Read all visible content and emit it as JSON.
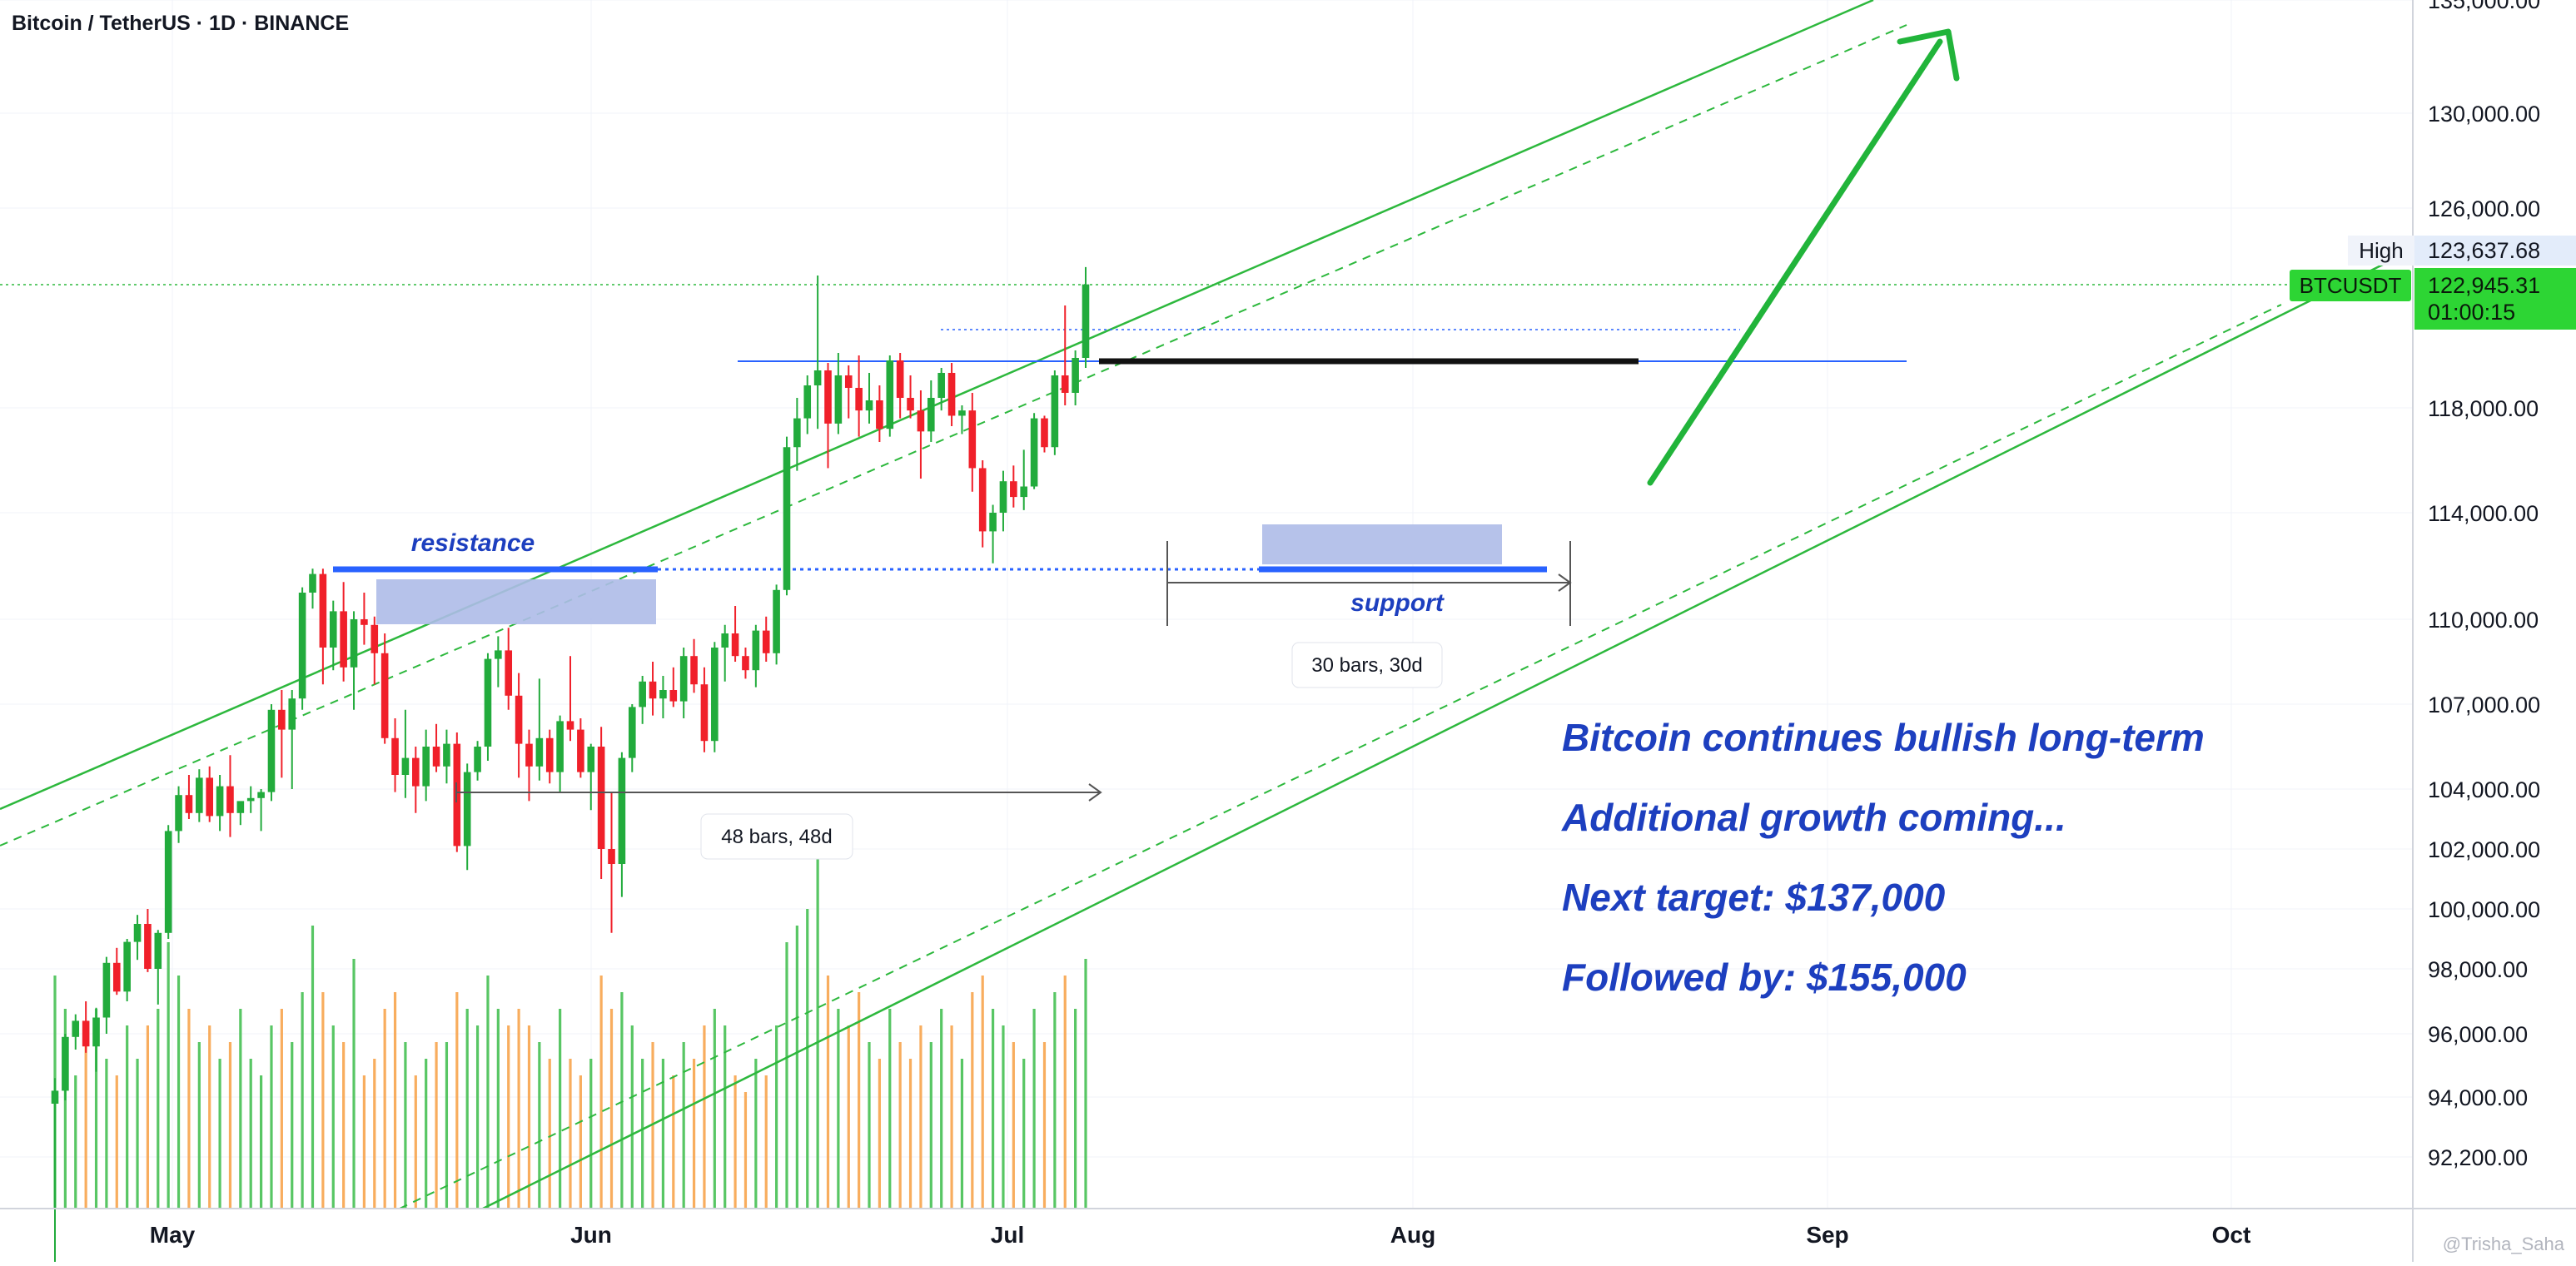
{
  "header": {
    "title": "Bitcoin / TetherUS · 1D · BINANCE"
  },
  "watermark": "@Trisha_Saha",
  "colors": {
    "up": "#22ab3c",
    "down": "#f0202a",
    "vol_up": "#46c053",
    "vol_down": "#f7a44d",
    "channel": "#2db83d",
    "blue_line": "#2962ff",
    "zone": "#aebbe8",
    "annotation_text": "#1d3fbf",
    "arrow": "#21b43a",
    "grid": "#f0f3fa"
  },
  "chart_data": {
    "type": "candlestick",
    "symbol": "BTCUSDT",
    "price_axis": {
      "ticks": [
        "135,000.00",
        "130,000.00",
        "126,000.00",
        "118,000.00",
        "114,000.00",
        "110,000.00",
        "107,000.00",
        "104,000.00",
        "102,000.00",
        "100,000.00",
        "98,000.00",
        "96,000.00",
        "94,000.00",
        "92,200.00"
      ],
      "tick_values": [
        135000,
        130000,
        126000,
        118000,
        114000,
        110000,
        107000,
        104000,
        102000,
        100000,
        98000,
        96000,
        94000,
        92200
      ]
    },
    "time_axis": {
      "labels": [
        "May",
        "Jun",
        "Jul",
        "Aug",
        "Sep",
        "Oct"
      ]
    },
    "price_labels": {
      "high_label": "High",
      "high_value": "123,637.68",
      "symbol": "BTCUSDT",
      "last_value": "122,945.31",
      "countdown": "01:00:15"
    },
    "candles": [
      [
        93800,
        94600,
        89000,
        94200,
        14
      ],
      [
        94200,
        96000,
        93900,
        95900,
        12
      ],
      [
        95900,
        96600,
        95500,
        96400,
        8
      ],
      [
        96400,
        97000,
        95400,
        95600,
        10
      ],
      [
        95600,
        96800,
        94800,
        96500,
        12
      ],
      [
        96500,
        98400,
        96000,
        98200,
        9
      ],
      [
        98200,
        98700,
        97200,
        97300,
        8
      ],
      [
        97300,
        99000,
        97000,
        98900,
        11
      ],
      [
        98900,
        99800,
        98300,
        99500,
        9
      ],
      [
        99500,
        100000,
        97900,
        98000,
        11
      ],
      [
        98000,
        99300,
        96900,
        99200,
        12
      ],
      [
        99200,
        102800,
        99000,
        102600,
        16
      ],
      [
        102600,
        104100,
        102200,
        103800,
        14
      ],
      [
        103800,
        104500,
        103000,
        103200,
        12
      ],
      [
        103200,
        104700,
        102900,
        104400,
        10
      ],
      [
        104400,
        104800,
        102900,
        103100,
        11
      ],
      [
        103100,
        104500,
        102600,
        104100,
        9
      ],
      [
        104100,
        105200,
        102400,
        103200,
        10
      ],
      [
        103200,
        103500,
        102800,
        103600,
        12
      ],
      [
        103600,
        104100,
        103200,
        103700,
        9
      ],
      [
        103700,
        104000,
        102600,
        103900,
        8
      ],
      [
        103900,
        107000,
        103600,
        106800,
        11
      ],
      [
        106800,
        107500,
        104400,
        106100,
        12
      ],
      [
        106100,
        107500,
        104000,
        107200,
        10
      ],
      [
        107200,
        111200,
        106800,
        111000,
        13
      ],
      [
        111000,
        111900,
        110400,
        111700,
        17
      ],
      [
        111700,
        111900,
        107700,
        109000,
        13
      ],
      [
        109000,
        110700,
        108200,
        110300,
        11
      ],
      [
        110300,
        111400,
        107800,
        108300,
        10
      ],
      [
        108300,
        110300,
        106800,
        110000,
        15
      ],
      [
        110000,
        111000,
        109100,
        109800,
        8
      ],
      [
        109800,
        110100,
        107700,
        108800,
        9
      ],
      [
        108800,
        109500,
        105600,
        105800,
        12
      ],
      [
        105800,
        106500,
        103900,
        104500,
        13
      ],
      [
        104500,
        106800,
        103700,
        105100,
        10
      ],
      [
        105100,
        105500,
        103200,
        104100,
        8
      ],
      [
        104100,
        106100,
        103600,
        105500,
        9
      ],
      [
        105500,
        106300,
        104600,
        104800,
        10
      ],
      [
        104800,
        106100,
        104200,
        105600,
        10
      ],
      [
        105600,
        106000,
        101900,
        102100,
        13
      ],
      [
        102100,
        104900,
        101300,
        104600,
        12
      ],
      [
        104600,
        105700,
        104300,
        105500,
        11
      ],
      [
        105500,
        108800,
        105000,
        108600,
        14
      ],
      [
        108600,
        109400,
        107600,
        108900,
        12
      ],
      [
        108900,
        109700,
        106800,
        107300,
        11
      ],
      [
        107300,
        108100,
        104400,
        105600,
        12
      ],
      [
        105600,
        106100,
        103600,
        104800,
        11
      ],
      [
        104800,
        107900,
        104300,
        105800,
        10
      ],
      [
        105800,
        106100,
        104200,
        104600,
        9
      ],
      [
        104600,
        106600,
        103900,
        106400,
        12
      ],
      [
        106400,
        108700,
        105700,
        106100,
        9
      ],
      [
        106100,
        106500,
        104400,
        104600,
        8
      ],
      [
        104600,
        105600,
        103300,
        105500,
        9
      ],
      [
        105500,
        106200,
        101000,
        102000,
        14
      ],
      [
        102000,
        103900,
        99200,
        101500,
        12
      ],
      [
        101500,
        105300,
        100400,
        105100,
        13
      ],
      [
        105100,
        107000,
        104600,
        106900,
        11
      ],
      [
        106900,
        108000,
        106300,
        107800,
        9
      ],
      [
        107800,
        108500,
        106600,
        107200,
        10
      ],
      [
        107200,
        108000,
        106500,
        107500,
        9
      ],
      [
        107500,
        108300,
        106900,
        107100,
        8
      ],
      [
        107100,
        109000,
        106500,
        108700,
        10
      ],
      [
        108700,
        109300,
        107400,
        107700,
        9
      ],
      [
        107700,
        108300,
        105300,
        105700,
        11
      ],
      [
        105700,
        109200,
        105300,
        109000,
        12
      ],
      [
        109000,
        109800,
        107800,
        109500,
        11
      ],
      [
        109500,
        110500,
        108500,
        108700,
        8
      ],
      [
        108700,
        109000,
        107900,
        108200,
        7
      ],
      [
        108200,
        109800,
        107600,
        109600,
        9
      ],
      [
        109600,
        110100,
        108500,
        108800,
        8
      ],
      [
        108800,
        111300,
        108400,
        111100,
        11
      ],
      [
        111100,
        116900,
        110900,
        116500,
        16
      ],
      [
        116500,
        118400,
        115600,
        117600,
        17
      ],
      [
        117600,
        119300,
        117000,
        118900,
        18
      ],
      [
        118900,
        123300,
        117200,
        119500,
        22
      ],
      [
        119500,
        119800,
        115700,
        117400,
        14
      ],
      [
        117400,
        120200,
        117000,
        119300,
        12
      ],
      [
        119300,
        119700,
        117600,
        118800,
        11
      ],
      [
        118800,
        120100,
        116900,
        117900,
        13
      ],
      [
        117900,
        119400,
        117400,
        118300,
        10
      ],
      [
        118300,
        118900,
        116700,
        117200,
        9
      ],
      [
        117200,
        120100,
        116900,
        119900,
        12
      ],
      [
        119900,
        120200,
        117600,
        118400,
        10
      ],
      [
        118400,
        119300,
        117600,
        117900,
        9
      ],
      [
        117900,
        118700,
        115300,
        117100,
        11
      ],
      [
        117100,
        119100,
        116700,
        118400,
        10
      ],
      [
        118400,
        119600,
        117900,
        119400,
        12
      ],
      [
        119400,
        119800,
        117300,
        117700,
        11
      ],
      [
        117700,
        118100,
        117000,
        117900,
        9
      ],
      [
        117900,
        118600,
        114800,
        115700,
        13
      ],
      [
        115700,
        116000,
        112700,
        113300,
        14
      ],
      [
        113300,
        114300,
        112100,
        114000,
        12
      ],
      [
        114000,
        115600,
        113300,
        115200,
        11
      ],
      [
        115200,
        115800,
        114200,
        114600,
        10
      ],
      [
        114600,
        116400,
        114100,
        115000,
        9
      ],
      [
        115000,
        117800,
        114900,
        117600,
        12
      ],
      [
        117600,
        117700,
        116300,
        116500,
        10
      ],
      [
        116500,
        119500,
        116200,
        119300,
        13
      ],
      [
        119300,
        122100,
        118100,
        118600,
        14
      ],
      [
        118600,
        120300,
        118100,
        120000,
        12
      ],
      [
        120000,
        123638,
        119600,
        122945,
        15
      ]
    ],
    "annotations": {
      "resistance": "resistance",
      "support": "support",
      "range1": "48 bars, 48d",
      "range2": "30 bars, 30d",
      "text_lines": [
        "Bitcoin continues bullish long-term",
        "Additional growth coming...",
        "Next target: $137,000",
        "Followed by: $155,000"
      ]
    }
  }
}
